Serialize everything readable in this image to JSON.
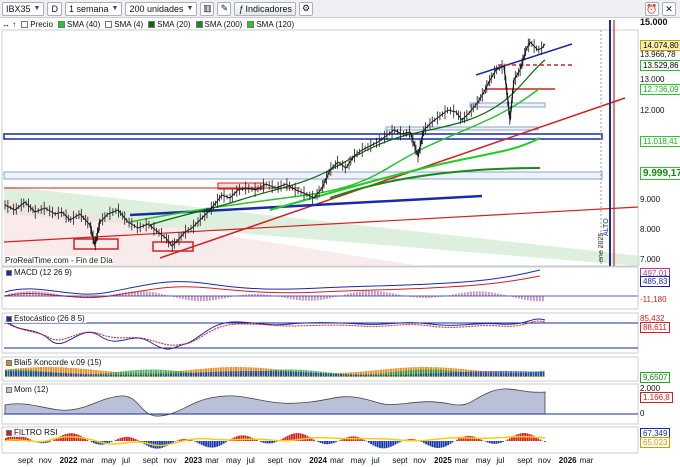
{
  "toolbar": {
    "symbol": "IBX35",
    "period_letter": "D",
    "timeframe": "1 semana",
    "units": "200 unidades",
    "indicators_label": "Indicadores"
  },
  "legend": {
    "price": "Precio",
    "sma40": "SMA (40)",
    "sma4": "SMA (4)",
    "sma20": "SMA (20)",
    "sma200": "SMA (200)",
    "sma120": "SMA (120)"
  },
  "source_label": "ProRealTime.com - Fin de Día",
  "vertical_labels": {
    "ene2025": "ene 2025",
    "alt": "ALTO"
  },
  "price_axis": {
    "ticks": [
      "15.000",
      "13.000",
      "12.000",
      "9.000",
      "8.000",
      "7.000"
    ],
    "tag_price": "14.074,80",
    "tag_a": "13.966,78",
    "tag_b": "13.529,86",
    "tag_c": "12.736,09",
    "tag_d": "11.018,41",
    "level_main": "9.999,17"
  },
  "panels": {
    "macd": {
      "label": "MACD (12 26 9)",
      "v1": "497,01",
      "v2": "485,83",
      "v3": "-11,180"
    },
    "stoch": {
      "label": "Estocástico (26 8 5)",
      "v1": "85,432",
      "v2": "88,611"
    },
    "blai": {
      "label": "Blai5 Koncorde v.09 (15)",
      "v1": "9,6507"
    },
    "mom": {
      "label": "Mom (12)",
      "v1": "2.000",
      "v2": "1.166,8",
      "v3": "0"
    },
    "rsi": {
      "label": "FILTRO RSI",
      "v1": "67,349",
      "v2": "65,023"
    }
  },
  "x_axis": [
    {
      "t": "sept",
      "b": false
    },
    {
      "t": "nov",
      "b": false
    },
    {
      "t": "2022",
      "b": true
    },
    {
      "t": "mar",
      "b": false
    },
    {
      "t": "may",
      "b": false
    },
    {
      "t": "jul",
      "b": false
    },
    {
      "t": "sept",
      "b": false
    },
    {
      "t": "nov",
      "b": false
    },
    {
      "t": "2023",
      "b": true
    },
    {
      "t": "mar",
      "b": false
    },
    {
      "t": "may",
      "b": false
    },
    {
      "t": "jul",
      "b": false
    },
    {
      "t": "sept",
      "b": false
    },
    {
      "t": "nov",
      "b": false
    },
    {
      "t": "2024",
      "b": true
    },
    {
      "t": "mar",
      "b": false
    },
    {
      "t": "may",
      "b": false
    },
    {
      "t": "jul",
      "b": false
    },
    {
      "t": "sept",
      "b": false
    },
    {
      "t": "nov",
      "b": false
    },
    {
      "t": "2025",
      "b": true
    },
    {
      "t": "mar",
      "b": false
    },
    {
      "t": "may",
      "b": false
    },
    {
      "t": "jul",
      "b": false
    },
    {
      "t": "sept",
      "b": false
    },
    {
      "t": "nov",
      "b": false
    },
    {
      "t": "2026",
      "b": true
    },
    {
      "t": "mar",
      "b": false
    }
  ],
  "colors": {
    "sma40": "#2fbf2f",
    "sma4": "#3a7a1a",
    "sma20": "#0a6a0a",
    "sma200": "#1a8a1a",
    "sma120": "#22cc22",
    "support_blue": "#1a2aa8",
    "trend_red": "#d42020"
  }
}
